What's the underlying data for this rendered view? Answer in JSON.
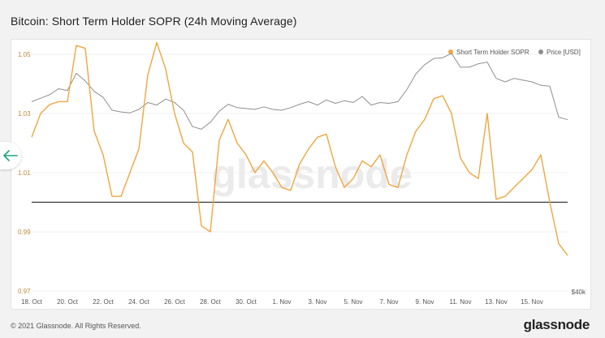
{
  "page": {
    "title": "Bitcoin: Short Term Holder SOPR (24h Moving Average)",
    "copyright": "© 2021 Glassnode. All Rights Reserved.",
    "brand": "glassnode",
    "watermark": "glassnode"
  },
  "nav": {
    "back_icon": "arrow-left-icon"
  },
  "colors": {
    "sopr": "#f0a640",
    "price": "#8f8f8f",
    "baseline": "#333333",
    "accent": "#1fa37a"
  },
  "chart_data": {
    "type": "line",
    "title": "Bitcoin: Short Term Holder SOPR (24h Moving Average)",
    "legend": {
      "placement": "top-right",
      "entries": [
        "Short Term Holder SOPR",
        "Price [USD]"
      ]
    },
    "x": [
      "18. Oct",
      "18.5 Oct",
      "19. Oct",
      "19.5 Oct",
      "20. Oct",
      "20.5 Oct",
      "21. Oct",
      "21.5 Oct",
      "22. Oct",
      "22.5 Oct",
      "23. Oct",
      "23.5 Oct",
      "24. Oct",
      "24.5 Oct",
      "25. Oct",
      "25.5 Oct",
      "26. Oct",
      "26.5 Oct",
      "27. Oct",
      "27.5 Oct",
      "28. Oct",
      "28.5 Oct",
      "29. Oct",
      "29.5 Oct",
      "30. Oct",
      "30.5 Oct",
      "31. Oct",
      "31.5 Oct",
      "1. Nov",
      "1.5 Nov",
      "2. Nov",
      "2.5 Nov",
      "3. Nov",
      "3.5 Nov",
      "4. Nov",
      "4.5 Nov",
      "5. Nov",
      "5.5 Nov",
      "6. Nov",
      "6.5 Nov",
      "7. Nov",
      "7.5 Nov",
      "8. Nov",
      "8.5 Nov",
      "9. Nov",
      "9.5 Nov",
      "10. Nov",
      "10.5 Nov",
      "11. Nov",
      "11.5 Nov",
      "12. Nov",
      "12.5 Nov",
      "13. Nov",
      "13.5 Nov",
      "14. Nov",
      "14.5 Nov",
      "15. Nov",
      "15.5 Nov",
      "16. Nov",
      "16.5 Nov",
      "17. Nov"
    ],
    "xticks": [
      "18. Oct",
      "20. Oct",
      "22. Oct",
      "24. Oct",
      "26. Oct",
      "28. Oct",
      "30. Oct",
      "1. Nov",
      "3. Nov",
      "5. Nov",
      "7. Nov",
      "9. Nov",
      "11. Nov",
      "13. Nov",
      "15. Nov"
    ],
    "series": [
      {
        "name": "Short Term Holder SOPR",
        "axis": "left",
        "values": [
          1.022,
          1.03,
          1.033,
          1.034,
          1.034,
          1.053,
          1.052,
          1.024,
          1.016,
          1.002,
          1.002,
          1.01,
          1.018,
          1.043,
          1.054,
          1.045,
          1.03,
          1.02,
          1.017,
          0.992,
          0.99,
          1.021,
          1.028,
          1.02,
          1.016,
          1.01,
          1.014,
          1.01,
          1.005,
          1.004,
          1.013,
          1.018,
          1.022,
          1.023,
          1.012,
          1.005,
          1.008,
          1.014,
          1.012,
          1.016,
          1.006,
          1.005,
          1.016,
          1.024,
          1.028,
          1.035,
          1.036,
          1.03,
          1.015,
          1.01,
          1.008,
          1.03,
          1.001,
          1.002,
          1.005,
          1.008,
          1.011,
          1.016,
          1.0,
          0.986,
          0.982
        ]
      },
      {
        "name": "Price [USD]",
        "axis": "right",
        "values": [
          62000,
          62400,
          62800,
          63500,
          63300,
          65300,
          64400,
          63200,
          62500,
          61000,
          60800,
          60700,
          61100,
          61900,
          61600,
          62300,
          61900,
          61000,
          59100,
          58800,
          59600,
          60900,
          61700,
          61300,
          61200,
          61100,
          61400,
          61100,
          61000,
          61300,
          61700,
          62000,
          61600,
          62200,
          61800,
          62100,
          61900,
          62600,
          61600,
          61900,
          61800,
          62000,
          63400,
          65200,
          66300,
          67000,
          67100,
          67600,
          66000,
          66000,
          66400,
          66600,
          64700,
          64300,
          64700,
          64500,
          64300,
          63900,
          63800,
          60200,
          59900
        ]
      }
    ],
    "y_left": {
      "ticks": [
        "1.05",
        "1.03",
        "1.01",
        "0.99",
        "0.97"
      ],
      "range": [
        0.97,
        1.05
      ]
    },
    "y_right": {
      "tick_label": "$40k",
      "range": [
        40000,
        67500
      ]
    },
    "reference_line": {
      "y": 1.0
    },
    "grid": true
  }
}
